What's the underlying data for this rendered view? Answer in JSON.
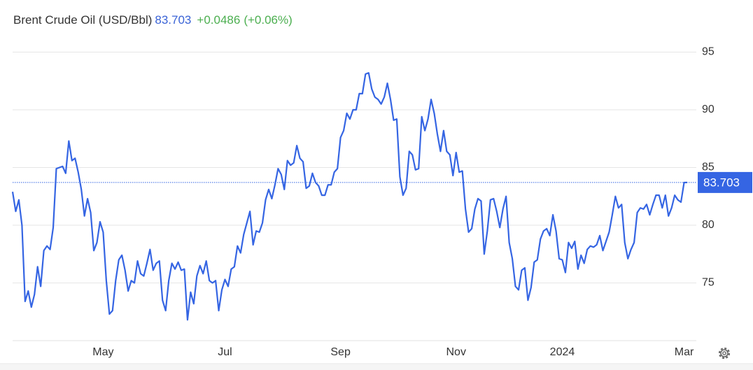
{
  "chart_data": {
    "type": "line",
    "title": "Brent Crude Oil (USD/Bbl)",
    "change": "+0.0486",
    "change_percent": "(+0.06%)",
    "color": "#3565e3",
    "grid": true,
    "y_axis_side": "right",
    "ylim": [
      70,
      96.5
    ],
    "yticks": [
      75,
      80,
      85,
      90,
      95
    ],
    "categories": [
      null,
      null,
      null,
      null,
      null,
      null,
      null,
      null,
      null,
      null,
      null,
      null,
      null,
      null,
      null,
      null,
      null,
      null,
      null,
      null,
      null,
      null,
      null,
      null,
      null,
      null,
      null,
      null,
      null,
      "May",
      null,
      null,
      null,
      null,
      null,
      null,
      null,
      null,
      null,
      null,
      null,
      null,
      null,
      null,
      null,
      null,
      null,
      null,
      null,
      null,
      null,
      null,
      null,
      null,
      null,
      null,
      null,
      null,
      null,
      null,
      null,
      null,
      null,
      null,
      null,
      null,
      null,
      null,
      "Jul",
      null,
      null,
      null,
      null,
      null,
      null,
      null,
      null,
      null,
      null,
      null,
      null,
      null,
      null,
      null,
      null,
      null,
      null,
      null,
      null,
      null,
      null,
      null,
      null,
      null,
      null,
      null,
      null,
      null,
      null,
      null,
      null,
      null,
      null,
      null,
      null,
      "Sep",
      null,
      null,
      null,
      null,
      null,
      null,
      null,
      null,
      null,
      null,
      null,
      null,
      null,
      null,
      null,
      null,
      null,
      null,
      null,
      null,
      null,
      null,
      null,
      null,
      null,
      null,
      null,
      null,
      null,
      null,
      null,
      null,
      null,
      null,
      null,
      null,
      "Nov",
      null,
      null,
      null,
      null,
      null,
      null,
      null,
      null,
      null,
      null,
      null,
      null,
      null,
      null,
      null,
      null,
      null,
      null,
      null,
      null,
      null,
      null,
      null,
      null,
      null,
      null,
      null,
      null,
      null,
      null,
      null,
      null,
      null,
      "2024",
      null,
      null,
      null,
      null,
      null,
      null,
      null,
      null,
      null,
      null,
      null,
      null,
      null,
      null,
      null,
      null,
      null,
      null,
      null,
      null,
      null,
      null,
      null,
      null,
      null,
      null,
      null,
      null,
      null,
      null,
      null,
      null,
      null,
      null,
      null,
      null,
      null,
      null,
      "Mar",
      null
    ],
    "values": [
      82.9,
      81.2,
      82.2,
      80.0,
      73.4,
      74.3,
      72.9,
      74.0,
      76.4,
      74.7,
      77.8,
      78.2,
      77.9,
      79.8,
      84.9,
      85.0,
      85.1,
      84.5,
      87.3,
      85.6,
      85.8,
      84.6,
      83.1,
      80.8,
      82.3,
      81.1,
      77.8,
      78.5,
      80.3,
      79.4,
      75.2,
      72.3,
      72.6,
      75.2,
      77.0,
      77.4,
      76.1,
      74.3,
      75.2,
      75.0,
      76.9,
      75.8,
      75.6,
      76.7,
      77.9,
      76.1,
      76.7,
      76.9,
      73.5,
      72.6,
      75.2,
      76.7,
      76.2,
      76.8,
      76.1,
      76.2,
      71.8,
      74.2,
      73.2,
      75.6,
      76.5,
      75.8,
      76.9,
      75.2,
      75.0,
      75.2,
      72.6,
      74.4,
      75.3,
      74.7,
      76.2,
      76.4,
      78.2,
      77.6,
      79.2,
      80.2,
      81.2,
      78.3,
      79.5,
      79.4,
      80.2,
      82.2,
      83.1,
      82.3,
      83.5,
      84.9,
      84.4,
      83.1,
      85.6,
      85.2,
      85.4,
      86.9,
      85.8,
      85.5,
      83.2,
      83.4,
      84.5,
      83.7,
      83.4,
      82.6,
      82.6,
      83.5,
      83.5,
      84.6,
      84.9,
      87.6,
      88.2,
      89.7,
      89.2,
      90.0,
      90.0,
      91.4,
      91.4,
      93.1,
      93.2,
      91.8,
      91.1,
      90.9,
      90.5,
      91.1,
      92.3,
      90.9,
      89.1,
      89.2,
      84.2,
      82.6,
      83.2,
      86.4,
      86.1,
      84.8,
      84.9,
      89.4,
      88.2,
      89.2,
      90.9,
      89.7,
      87.9,
      86.4,
      88.2,
      86.4,
      86.1,
      84.3,
      86.3,
      84.6,
      84.7,
      81.4,
      79.4,
      79.7,
      81.4,
      82.3,
      82.1,
      77.5,
      79.5,
      82.2,
      82.3,
      81.2,
      79.8,
      81.4,
      82.5,
      78.5,
      77.1,
      74.7,
      74.4,
      76.1,
      76.3,
      73.5,
      74.6,
      76.8,
      77.0,
      78.8,
      79.5,
      79.7,
      79.1,
      80.9,
      79.5,
      77.1,
      77.0,
      75.9,
      78.5,
      78.0,
      78.6,
      76.2,
      77.4,
      76.7,
      77.9,
      78.2,
      78.1,
      78.3,
      79.1,
      77.8,
      78.6,
      79.4,
      80.9,
      82.5,
      81.5,
      81.8,
      78.5,
      77.1,
      77.9,
      78.5,
      81.1,
      81.5,
      81.4,
      81.8,
      80.9,
      81.8,
      82.6,
      82.6,
      81.5,
      82.6,
      80.8,
      81.5,
      82.6,
      82.2,
      82.0,
      83.7,
      83.703
    ]
  }
}
